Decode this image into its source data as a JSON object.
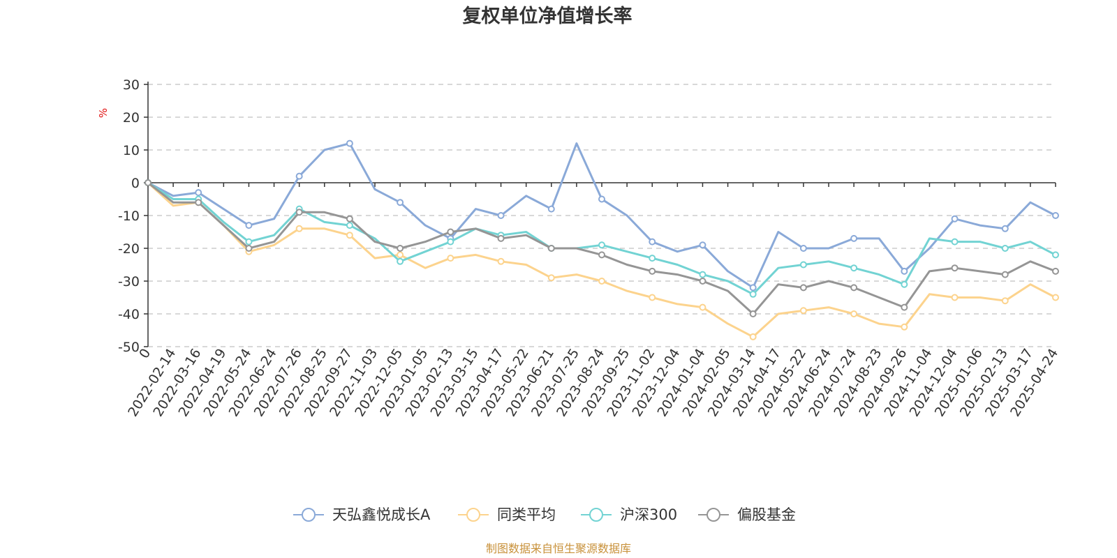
{
  "chart_data": {
    "type": "line",
    "title": "复权单位净值增长率",
    "ylabel": "%",
    "ylim": [
      -50,
      30
    ],
    "yticks": [
      30,
      20,
      10,
      0,
      -10,
      -20,
      -30,
      -40,
      -50
    ],
    "grid": true,
    "legend_position": "bottom",
    "x": [
      "0",
      "2022-02-14",
      "2022-03-16",
      "2022-04-19",
      "2022-05-24",
      "2022-06-24",
      "2022-07-26",
      "2022-08-25",
      "2022-09-27",
      "2022-11-03",
      "2022-12-05",
      "2023-01-05",
      "2023-02-13",
      "2023-03-15",
      "2023-04-17",
      "2023-05-22",
      "2023-06-21",
      "2023-07-25",
      "2023-08-24",
      "2023-09-25",
      "2023-11-02",
      "2023-12-04",
      "2024-01-04",
      "2024-02-05",
      "2024-03-14",
      "2024-04-17",
      "2024-05-22",
      "2024-06-24",
      "2024-07-24",
      "2024-08-23",
      "2024-09-26",
      "2024-11-04",
      "2024-12-04",
      "2025-01-06",
      "2025-02-13",
      "2025-03-17",
      "2025-04-24"
    ],
    "series": [
      {
        "name": "天弘鑫悦成长A",
        "color": "#8aa9d8",
        "values": [
          0,
          -4,
          -3,
          -8,
          -13,
          -11,
          2,
          10,
          12,
          -2,
          -6,
          -13,
          -17,
          -8,
          -10,
          -4,
          -8,
          12,
          -5,
          -10,
          -18,
          -21,
          -19,
          -27,
          -32,
          -15,
          -20,
          -20,
          -17,
          -17,
          -27,
          -20,
          -11,
          -13,
          -14,
          -6,
          -10
        ]
      },
      {
        "name": "同类平均",
        "color": "#fcd38d",
        "values": [
          0,
          -7,
          -6,
          -13,
          -21,
          -19,
          -14,
          -14,
          -16,
          -23,
          -22,
          -26,
          -23,
          -22,
          -24,
          -25,
          -29,
          -28,
          -30,
          -33,
          -35,
          -37,
          -38,
          -43,
          -47,
          -40,
          -39,
          -38,
          -40,
          -43,
          -44,
          -34,
          -35,
          -35,
          -36,
          -31,
          -35
        ]
      },
      {
        "name": "沪深300",
        "color": "#72d3d3",
        "values": [
          0,
          -5,
          -5,
          -12,
          -18,
          -16,
          -8,
          -12,
          -13,
          -17,
          -24,
          -21,
          -18,
          -14,
          -16,
          -15,
          -20,
          -20,
          -19,
          -21,
          -23,
          -25,
          -28,
          -30,
          -34,
          -26,
          -25,
          -24,
          -26,
          -28,
          -31,
          -17,
          -18,
          -18,
          -20,
          -18,
          -22
        ]
      },
      {
        "name": "偏股基金",
        "color": "#959595",
        "values": [
          0,
          -6,
          -6,
          -13,
          -20,
          -18,
          -9,
          -9,
          -11,
          -18,
          -20,
          -18,
          -15,
          -14,
          -17,
          -16,
          -20,
          -20,
          -22,
          -25,
          -27,
          -28,
          -30,
          -33,
          -40,
          -31,
          -32,
          -30,
          -32,
          -35,
          -38,
          -27,
          -26,
          -27,
          -28,
          -24,
          -27
        ]
      }
    ]
  },
  "source_note": "制图数据来自恒生聚源数据库"
}
